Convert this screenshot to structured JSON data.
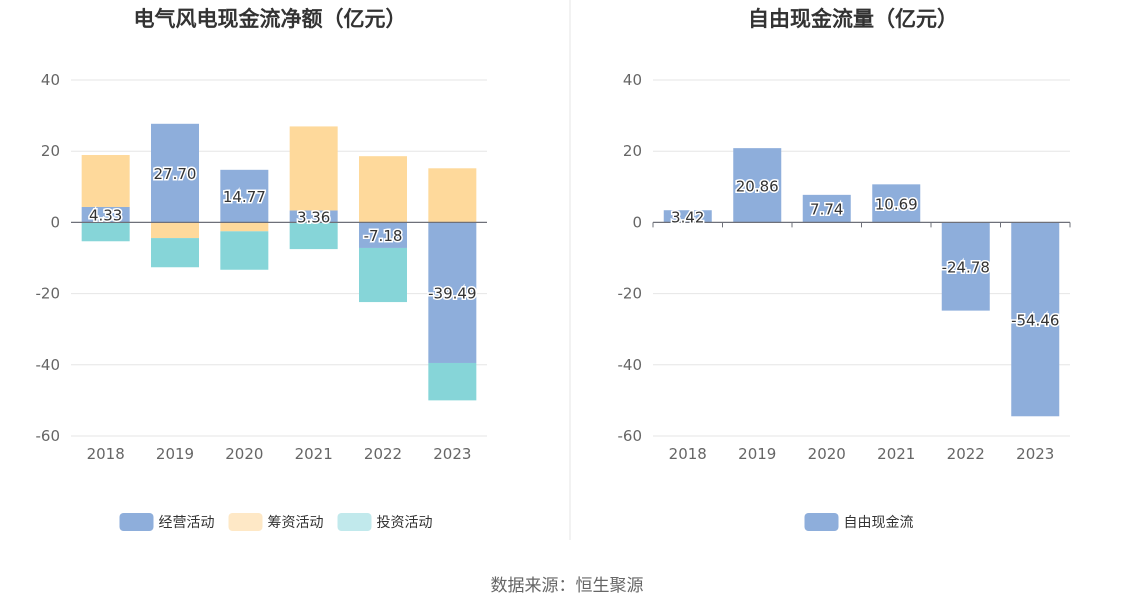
{
  "chart_data": [
    {
      "type": "bar",
      "stacked": true,
      "title": "电气风电现金流净额（亿元）",
      "categories": [
        "2018",
        "2019",
        "2020",
        "2021",
        "2022",
        "2023"
      ],
      "ylim": [
        -60,
        40
      ],
      "yticks": [
        40,
        20,
        0,
        -20,
        -40,
        -60
      ],
      "grid": true,
      "legend_position": "bottom",
      "series": [
        {
          "name": "经营活动",
          "color": "#8eaedb",
          "values": [
            4.33,
            27.7,
            14.77,
            3.36,
            -7.18,
            -39.49
          ]
        },
        {
          "name": "筹资活动",
          "color": "#fed99b",
          "values": [
            14.6,
            -4.4,
            -2.5,
            23.6,
            18.6,
            15.2
          ]
        },
        {
          "name": "投资活动",
          "color": "#86d5d8",
          "values": [
            -5.3,
            -8.2,
            -10.8,
            -7.5,
            -15.2,
            -10.5
          ]
        }
      ],
      "data_labels": [
        "4.33",
        "27.70",
        "14.77",
        "3.36",
        "-7.18",
        "-39.49"
      ],
      "legend_colors": [
        "#8eaedb",
        "#fee8c6",
        "#c1e9ec"
      ]
    },
    {
      "type": "bar",
      "title": "自由现金流量（亿元）",
      "categories": [
        "2018",
        "2019",
        "2020",
        "2021",
        "2022",
        "2023"
      ],
      "ylim": [
        -60,
        40
      ],
      "yticks": [
        40,
        20,
        0,
        -20,
        -40,
        -60
      ],
      "grid": true,
      "legend_position": "bottom",
      "series": [
        {
          "name": "自由现金流",
          "color": "#8eaedb",
          "values": [
            3.42,
            20.86,
            7.74,
            10.69,
            -24.78,
            -54.46
          ]
        }
      ],
      "data_labels": [
        "3.42",
        "20.86",
        "7.74",
        "10.69",
        "-24.78",
        "-54.46"
      ],
      "legend_colors": [
        "#8eaedb"
      ]
    }
  ],
  "source_text": "数据来源：恒生聚源"
}
